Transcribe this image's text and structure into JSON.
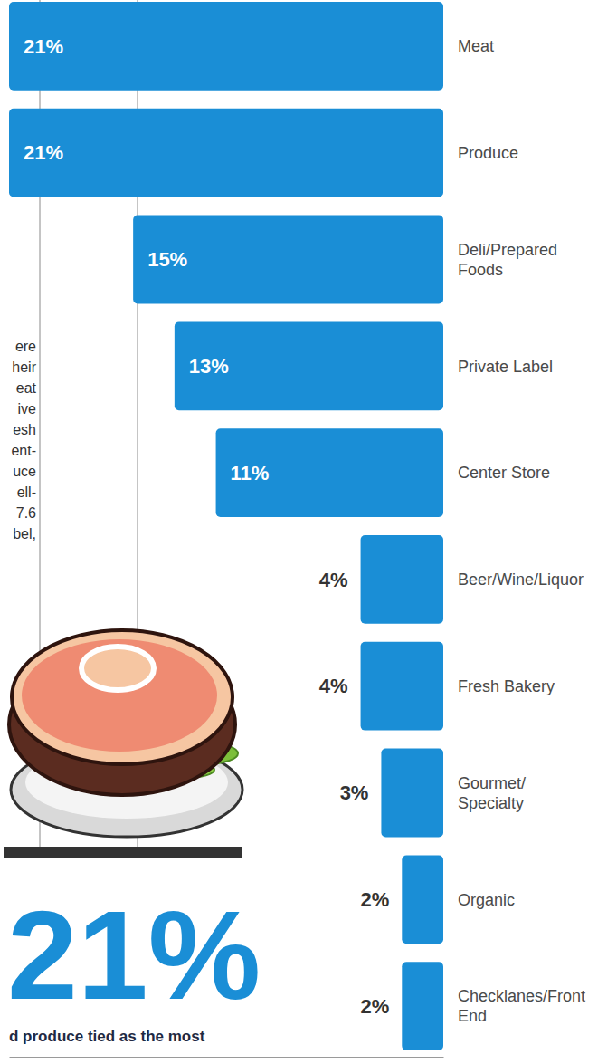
{
  "chart_data": {
    "type": "bar",
    "orientation": "horizontal",
    "categories": [
      "Meat",
      "Produce",
      "Deli/Prepared Foods",
      "Private Label",
      "Center Store",
      "Beer/Wine/Liquor",
      "Fresh Bakery",
      "Gourmet/Specialty",
      "Organic",
      "Checklanes/Front End"
    ],
    "values": [
      21,
      21,
      15,
      13,
      11,
      4,
      4,
      3,
      2,
      2
    ],
    "value_labels": [
      "21%",
      "21%",
      "15%",
      "13%",
      "11%",
      "4%",
      "4%",
      "3%",
      "2%",
      "2%"
    ],
    "color": "#1a8ed6",
    "xlim": [
      0,
      21
    ],
    "tick_labels": false,
    "data_labels": true,
    "annotations": [
      "21%",
      "d produce tied as the most"
    ]
  },
  "column_text": [
    "ere",
    "heir",
    "eat",
    "ive",
    "esh",
    "ent-",
    "uce",
    "ell-",
    "7.6",
    "bel,"
  ]
}
